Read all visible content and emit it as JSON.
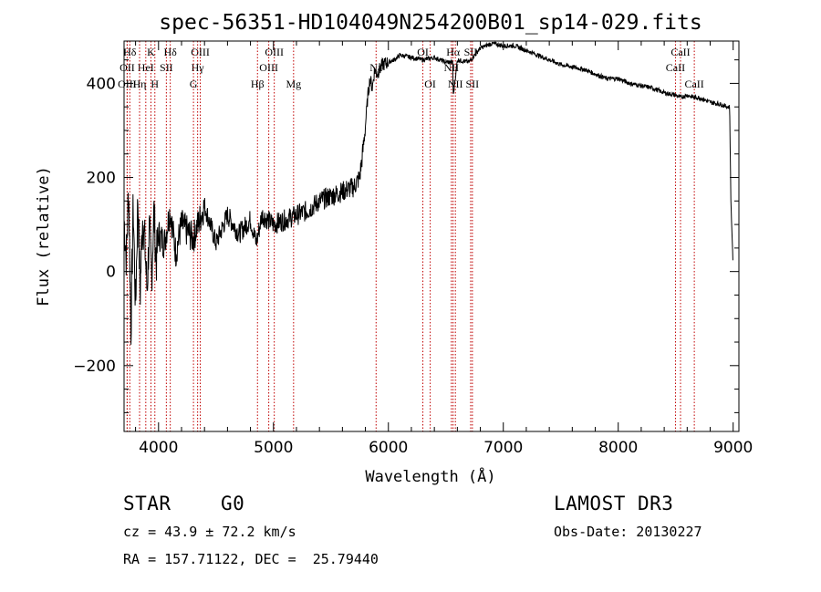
{
  "chart_data": {
    "type": "line",
    "title": "spec-56351-HD104049N254200B01_sp14-029.fits",
    "xlabel": "Wavelength (Å)",
    "ylabel": "Flux (relative)",
    "xlim": [
      3700,
      9050
    ],
    "ylim": [
      -340,
      490
    ],
    "xticks": [
      4000,
      5000,
      6000,
      7000,
      8000,
      9000
    ],
    "yticks": [
      -200,
      0,
      200,
      400
    ],
    "series": [
      {
        "name": "spectrum",
        "x": [
          3700,
          3720,
          3740,
          3760,
          3780,
          3800,
          3820,
          3840,
          3860,
          3880,
          3900,
          3920,
          3940,
          3960,
          3980,
          4000,
          4050,
          4100,
          4150,
          4200,
          4300,
          4400,
          4500,
          4600,
          4700,
          4800,
          4850,
          4900,
          5000,
          5100,
          5200,
          5300,
          5400,
          5500,
          5600,
          5700,
          5750,
          5780,
          5800,
          5820,
          5840,
          5860,
          5880,
          5900,
          5950,
          6000,
          6050,
          6100,
          6200,
          6300,
          6400,
          6500,
          6560,
          6563,
          6600,
          6700,
          6800,
          6900,
          7000,
          7100,
          7200,
          7300,
          7400,
          7500,
          7600,
          7700,
          7800,
          7900,
          8000,
          8100,
          8200,
          8300,
          8400,
          8500,
          8542,
          8600,
          8662,
          8700,
          8800,
          8900,
          8950,
          8970,
          8980,
          8990,
          9000
        ],
        "values": [
          110,
          30,
          180,
          -120,
          140,
          -80,
          160,
          -50,
          120,
          60,
          -40,
          90,
          -10,
          130,
          20,
          80,
          60,
          130,
          40,
          100,
          70,
          140,
          60,
          120,
          80,
          110,
          60,
          120,
          100,
          110,
          120,
          130,
          150,
          160,
          170,
          180,
          200,
          260,
          310,
          370,
          410,
          390,
          430,
          420,
          440,
          445,
          450,
          460,
          455,
          450,
          455,
          445,
          445,
          370,
          450,
          445,
          475,
          485,
          480,
          480,
          470,
          460,
          450,
          440,
          435,
          430,
          420,
          410,
          410,
          400,
          395,
          390,
          380,
          375,
          370,
          375,
          370,
          370,
          360,
          355,
          350,
          350,
          150,
          80,
          10
        ]
      }
    ],
    "lines": [
      {
        "label": "Hδ",
        "x": 3750,
        "row": 1
      },
      {
        "label": "OII",
        "x": 3727,
        "row": 2
      },
      {
        "label": "OIII",
        "x": 3727,
        "row": 3
      },
      {
        "label": "K",
        "x": 3934,
        "row": 1
      },
      {
        "label": "HeI",
        "x": 3889,
        "row": 2
      },
      {
        "label": "Hη",
        "x": 3835,
        "row": 3
      },
      {
        "label": "SII",
        "x": 4068,
        "row": 2
      },
      {
        "label": "H",
        "x": 3968,
        "row": 3
      },
      {
        "label": "Hδ",
        "x": 4102,
        "row": 1
      },
      {
        "label": "OIII",
        "x": 4363,
        "row": 1
      },
      {
        "label": "Hγ",
        "x": 4340,
        "row": 2
      },
      {
        "label": "G",
        "x": 4304,
        "row": 3
      },
      {
        "label": "OIII",
        "x": 5007,
        "row": 1
      },
      {
        "label": "OIII",
        "x": 4959,
        "row": 2
      },
      {
        "label": "Hβ",
        "x": 4861,
        "row": 3
      },
      {
        "label": "Mg",
        "x": 5175,
        "row": 3
      },
      {
        "label": "Na",
        "x": 5893,
        "row": 2
      },
      {
        "label": "OI",
        "x": 6300,
        "row": 1
      },
      {
        "label": "OI",
        "x": 6364,
        "row": 3
      },
      {
        "label": "Hα",
        "x": 6563,
        "row": 1
      },
      {
        "label": "SII",
        "x": 6716,
        "row": 1
      },
      {
        "label": "NII",
        "x": 6548,
        "row": 2
      },
      {
        "label": "NII",
        "x": 6583,
        "row": 3
      },
      {
        "label": "SII",
        "x": 6731,
        "row": 3
      },
      {
        "label": "CaII",
        "x": 8542,
        "row": 1
      },
      {
        "label": "CaII",
        "x": 8498,
        "row": 2
      },
      {
        "label": "CaII",
        "x": 8662,
        "row": 3
      }
    ]
  },
  "info": {
    "object_type": "STAR",
    "subclass": "G0",
    "survey": "LAMOST DR3",
    "cz": "cz = 43.9 ± 72.2 km/s",
    "obs_date": "Obs-Date: 20130227",
    "coords": "RA = 157.71122, DEC =  25.79440"
  }
}
